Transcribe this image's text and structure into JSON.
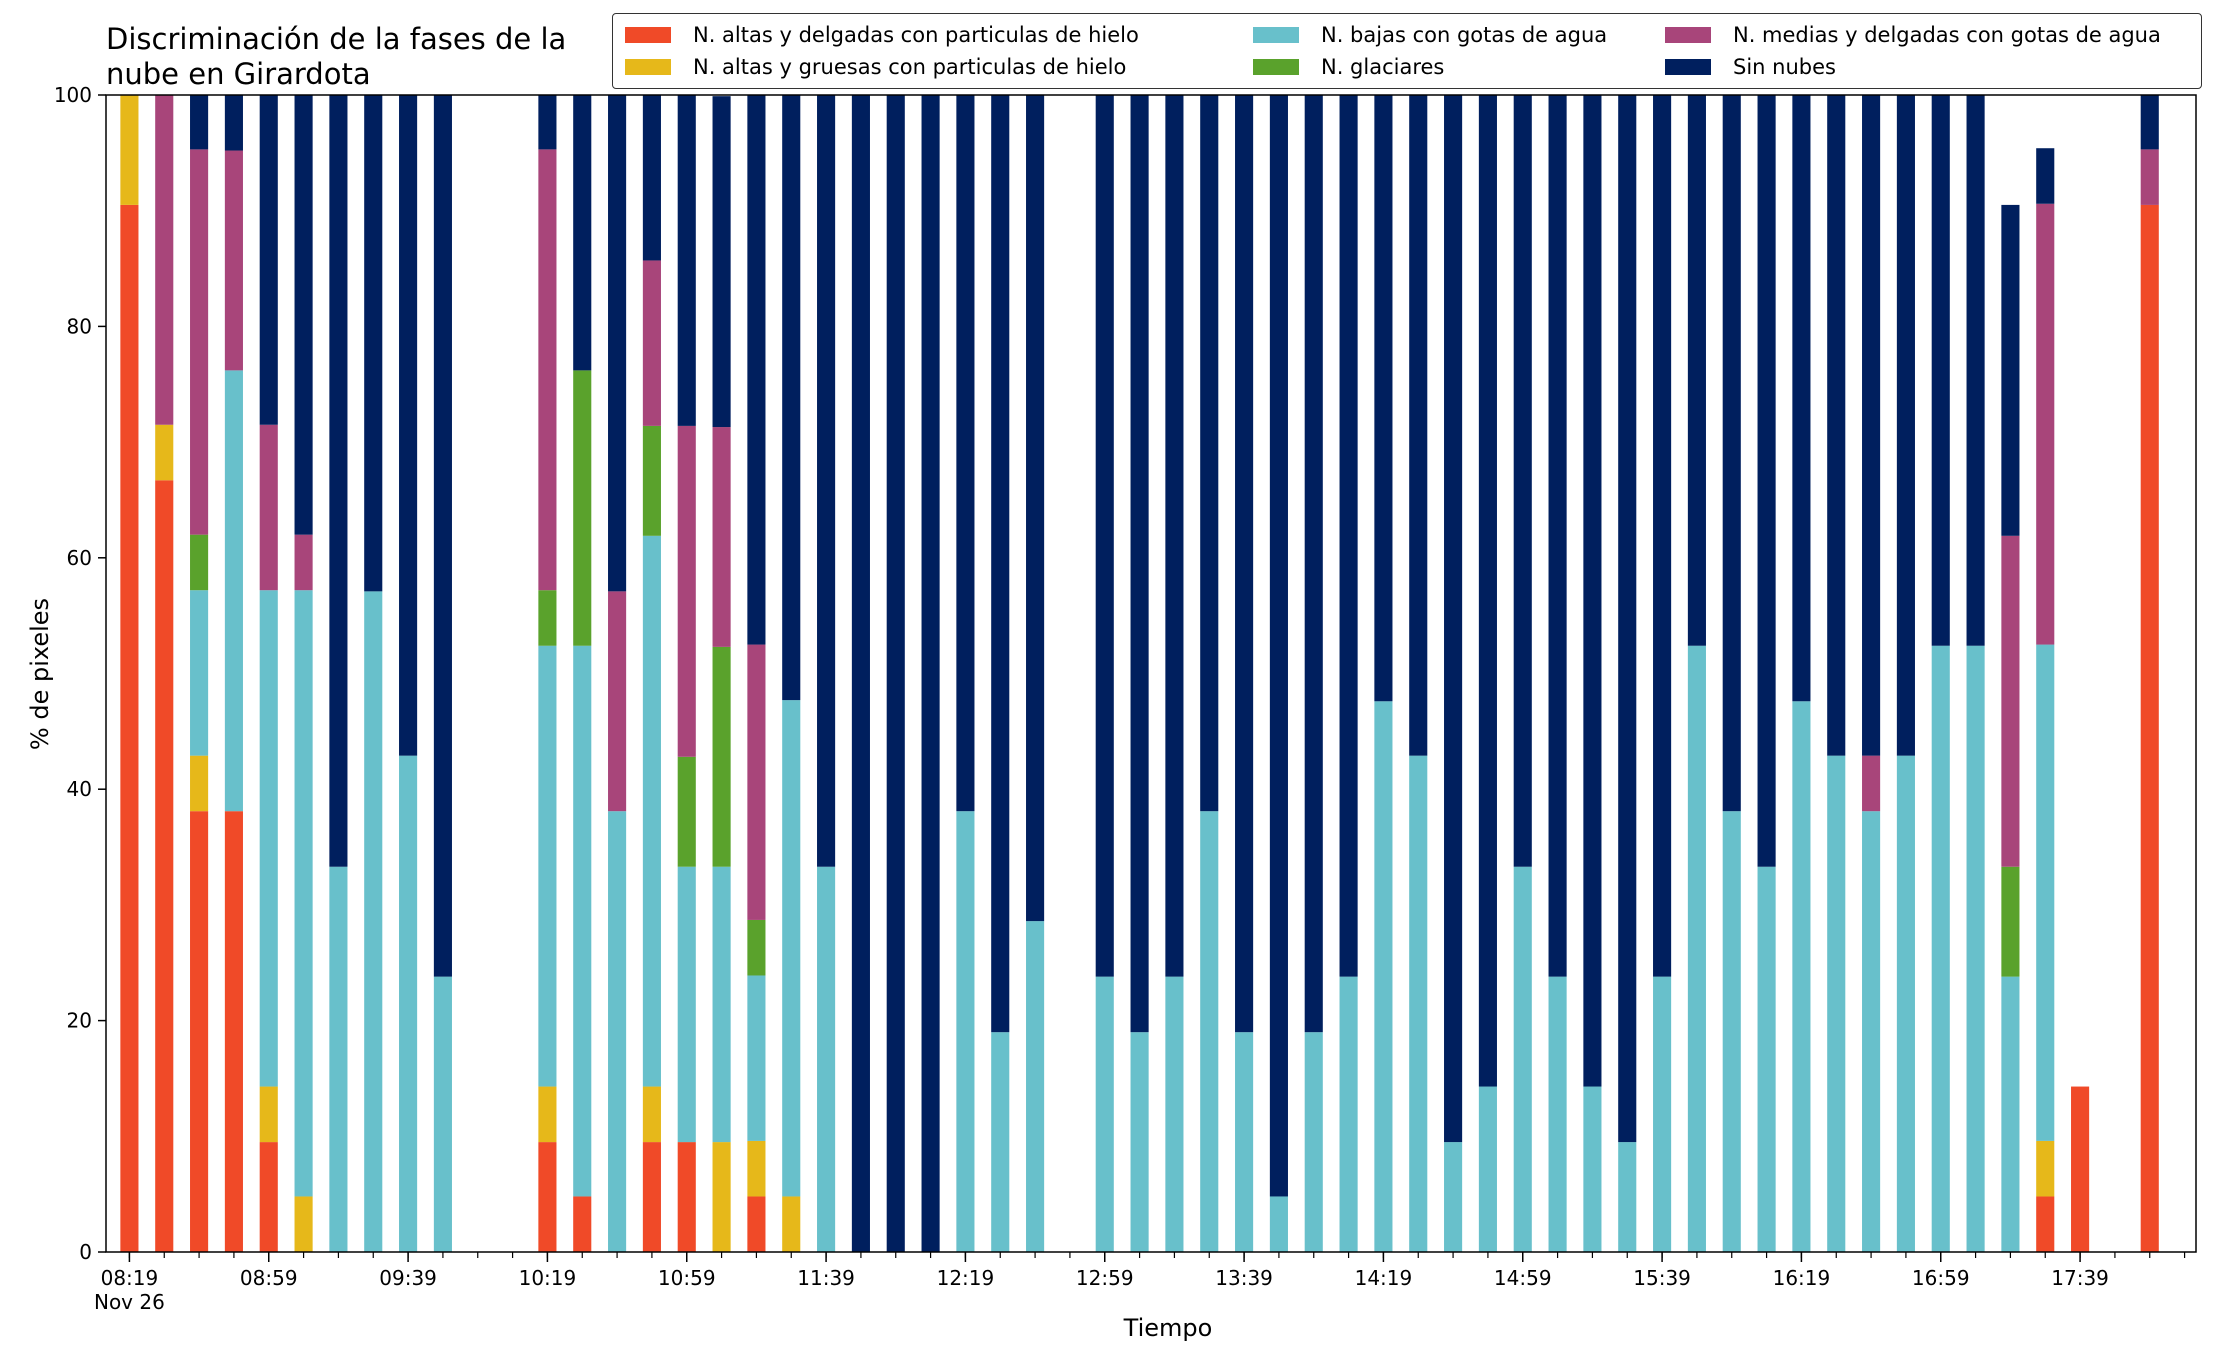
{
  "chart_data": {
    "type": "bar",
    "stacked": true,
    "title_lines": [
      "Discriminación de la fases de la",
      "nube en Girardota"
    ],
    "xlabel": "Tiempo",
    "ylabel": "% de pixeles",
    "ylim": [
      0,
      100
    ],
    "yticks": [
      0,
      20,
      40,
      60,
      80,
      100
    ],
    "legend_placement": "top-right",
    "x_tick_labels": [
      "08:19",
      "08:59",
      "09:39",
      "10:19",
      "10:59",
      "11:39",
      "12:19",
      "12:59",
      "13:39",
      "14:19",
      "14:59",
      "15:39",
      "16:19",
      "16:59",
      "17:39"
    ],
    "x_tick_sublabel": "Nov 26",
    "categories": [
      "08:19",
      "08:29",
      "08:39",
      "08:49",
      "08:59",
      "09:09",
      "09:19",
      "09:29",
      "09:39",
      "09:49",
      "09:59",
      "10:09",
      "10:19",
      "10:29",
      "10:39",
      "10:49",
      "10:59",
      "11:09",
      "11:19",
      "11:29",
      "11:39",
      "11:49",
      "11:59",
      "12:09",
      "12:19",
      "12:29",
      "12:39",
      "12:49",
      "12:59",
      "13:09",
      "13:19",
      "13:29",
      "13:39",
      "13:49",
      "13:59",
      "14:09",
      "14:19",
      "14:29",
      "14:39",
      "14:49",
      "14:59",
      "15:09",
      "15:19",
      "15:29",
      "15:39",
      "15:49",
      "15:59",
      "16:09",
      "16:19",
      "16:29",
      "16:39",
      "16:49",
      "16:59",
      "17:09",
      "17:19",
      "17:29",
      "17:39",
      "17:49",
      "17:59"
    ],
    "series": [
      {
        "name": "N. altas y delgadas con particulas de hielo",
        "color": "#f04a28",
        "values": [
          90.5,
          66.7,
          38.1,
          38.1,
          9.5,
          0,
          0,
          0,
          0,
          0,
          0,
          0,
          9.5,
          4.8,
          0,
          9.5,
          9.5,
          0,
          4.8,
          0,
          0,
          0,
          0,
          0,
          0,
          0,
          0,
          0,
          0,
          0,
          0,
          0,
          0,
          0,
          0,
          0,
          0,
          0,
          0,
          0,
          0,
          0,
          0,
          0,
          0,
          0,
          0,
          0,
          0,
          0,
          0,
          0,
          0,
          0,
          0,
          4.8,
          14.3,
          0,
          90.5
        ]
      },
      {
        "name": "N. altas y gruesas con particulas de hielo",
        "color": "#e6b81a",
        "values": [
          9.5,
          4.8,
          4.8,
          0,
          4.8,
          4.8,
          0,
          0,
          0,
          0,
          0,
          0,
          4.8,
          0,
          0,
          4.8,
          0,
          9.5,
          4.8,
          4.8,
          0,
          0,
          0,
          0,
          0,
          0,
          0,
          0,
          0,
          0,
          0,
          0,
          0,
          0,
          0,
          0,
          0,
          0,
          0,
          0,
          0,
          0,
          0,
          0,
          0,
          0,
          0,
          0,
          0,
          0,
          0,
          0,
          0,
          0,
          0,
          4.8,
          0,
          0,
          0
        ]
      },
      {
        "name": "N. bajas con gotas de agua",
        "color": "#68c0cb",
        "values": [
          0,
          0,
          14.3,
          38.1,
          42.9,
          52.4,
          33.3,
          57.1,
          42.9,
          23.8,
          0,
          0,
          38.1,
          47.6,
          38.1,
          47.6,
          23.8,
          23.8,
          14.3,
          42.9,
          33.3,
          0,
          0,
          0,
          38.1,
          19.0,
          28.6,
          0,
          23.8,
          19.0,
          23.8,
          38.1,
          19.0,
          4.8,
          19.0,
          23.8,
          47.6,
          42.9,
          9.5,
          14.3,
          33.3,
          23.8,
          14.3,
          9.5,
          23.8,
          52.4,
          38.1,
          33.3,
          47.6,
          42.9,
          38.1,
          42.9,
          52.4,
          52.4,
          23.8,
          42.9,
          0,
          0,
          0
        ]
      },
      {
        "name": "N. glaciares",
        "color": "#5aa22c",
        "values": [
          0,
          0,
          4.8,
          0,
          0,
          0,
          0,
          0,
          0,
          0,
          0,
          0,
          4.8,
          23.8,
          0,
          9.5,
          9.5,
          19.0,
          4.8,
          0,
          0,
          0,
          0,
          0,
          0,
          0,
          0,
          0,
          0,
          0,
          0,
          0,
          0,
          0,
          0,
          0,
          0,
          0,
          0,
          0,
          0,
          0,
          0,
          0,
          0,
          0,
          0,
          0,
          0,
          0,
          0,
          0,
          0,
          0,
          9.5,
          0,
          0,
          0,
          0
        ]
      },
      {
        "name": "N. medias y delgadas con gotas de agua",
        "color": "#a8457a",
        "values": [
          0,
          28.6,
          33.3,
          19.0,
          14.3,
          4.8,
          0,
          0,
          0,
          0,
          0,
          0,
          38.1,
          0,
          19.0,
          14.3,
          28.6,
          19.0,
          23.8,
          0,
          0,
          0,
          0,
          0,
          0,
          0,
          0,
          0,
          0,
          0,
          0,
          0,
          0,
          0,
          0,
          0,
          0,
          0,
          0,
          0,
          0,
          0,
          0,
          0,
          0,
          0,
          0,
          0,
          0,
          0,
          4.8,
          0,
          0,
          0,
          28.6,
          38.1,
          0,
          0,
          4.8
        ]
      },
      {
        "name": "Sin nubes",
        "color": "#001f5e",
        "values": [
          0,
          0,
          4.8,
          4.8,
          28.6,
          38.1,
          66.7,
          42.9,
          57.1,
          76.2,
          0,
          0,
          4.8,
          23.8,
          42.9,
          14.3,
          28.6,
          28.6,
          47.6,
          52.4,
          66.7,
          100,
          100,
          100,
          61.9,
          81.0,
          71.4,
          0,
          76.2,
          81.0,
          76.2,
          61.9,
          81.0,
          95.2,
          81.0,
          76.2,
          52.4,
          57.1,
          90.5,
          85.7,
          66.7,
          76.2,
          85.7,
          90.5,
          76.2,
          47.6,
          61.9,
          66.7,
          52.4,
          57.1,
          57.1,
          57.1,
          47.6,
          47.6,
          28.6,
          4.8,
          0,
          0,
          4.8
        ]
      }
    ]
  }
}
